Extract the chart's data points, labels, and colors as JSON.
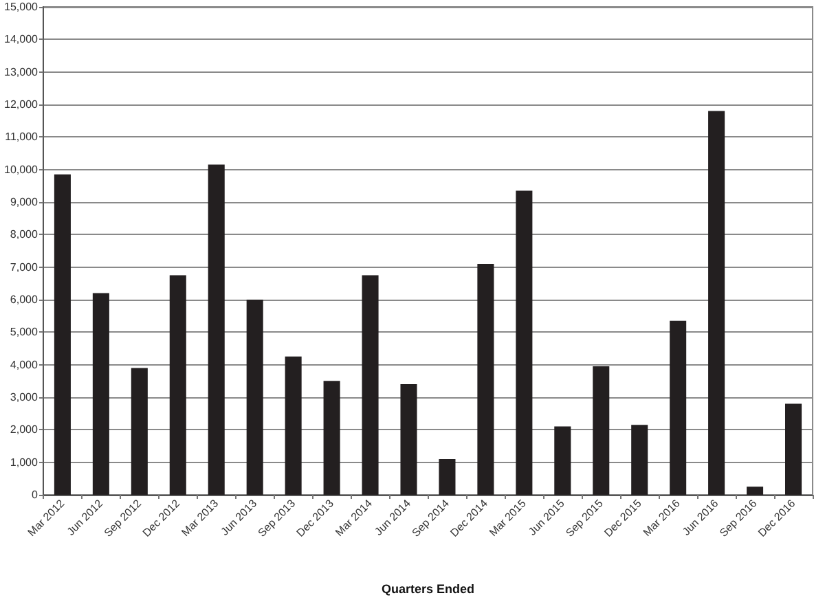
{
  "chart_data": {
    "type": "bar",
    "xlabel": "Quarters Ended",
    "categories": [
      "Mar 2012",
      "Jun 2012",
      "Sep 2012",
      "Dec 2012",
      "Mar 2013",
      "Jun 2013",
      "Sep 2013",
      "Dec 2013",
      "Mar 2014",
      "Jun 2014",
      "Sep 2014",
      "Dec 2014",
      "Mar 2015",
      "Jun 2015",
      "Sep 2015",
      "Dec 2015",
      "Mar 2016",
      "Jun 2016",
      "Sep 2016",
      "Dec 2016"
    ],
    "values": [
      9850,
      6200,
      3900,
      6750,
      10150,
      6000,
      4250,
      3500,
      6750,
      3400,
      1100,
      7100,
      9350,
      2100,
      3950,
      2150,
      5350,
      11800,
      250,
      2800
    ],
    "color": "#231f20",
    "ylim": [
      0,
      15000
    ],
    "yticks": [
      {
        "value": 0,
        "label": "0"
      },
      {
        "value": 1000,
        "label": "1,000"
      },
      {
        "value": 2000,
        "label": "2,000"
      },
      {
        "value": 3000,
        "label": "3,000"
      },
      {
        "value": 4000,
        "label": "4,000"
      },
      {
        "value": 5000,
        "label": "5,000"
      },
      {
        "value": 6000,
        "label": "6,000"
      },
      {
        "value": 7000,
        "label": "7,000"
      },
      {
        "value": 8000,
        "label": "8,000"
      },
      {
        "value": 9000,
        "label": "9,000"
      },
      {
        "value": 10000,
        "label": "10,000"
      },
      {
        "value": 11000,
        "label": "11,000"
      },
      {
        "value": 12000,
        "label": "12,000"
      },
      {
        "value": 13000,
        "label": "13,000"
      },
      {
        "value": 14000,
        "label": "14,000"
      },
      {
        "value": 15000,
        "label": "15,000"
      }
    ],
    "grid": "y"
  }
}
